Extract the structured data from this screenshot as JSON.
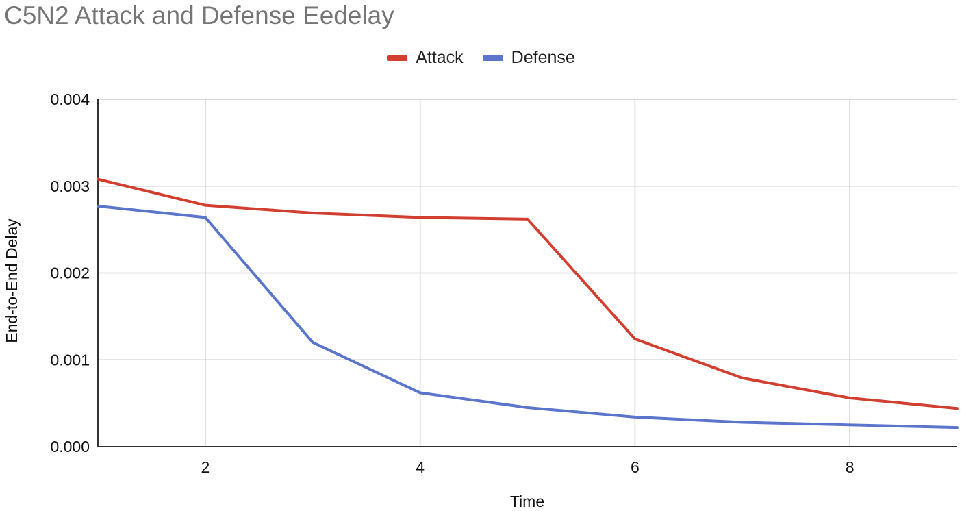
{
  "chart_data": {
    "type": "line",
    "title": "C5N2 Attack and Defense Eedelay",
    "xlabel": "Time",
    "ylabel": "End-to-End Delay",
    "xlim": [
      1,
      9
    ],
    "ylim": [
      0,
      0.004
    ],
    "x_ticks": [
      2,
      4,
      6,
      8
    ],
    "y_ticks": [
      "0.000",
      "0.001",
      "0.002",
      "0.003",
      "0.004"
    ],
    "grid": true,
    "legend_position": "top-center",
    "x": [
      1,
      2,
      3,
      4,
      5,
      6,
      7,
      8,
      9
    ],
    "series": [
      {
        "name": "Attack",
        "color": "#d23f31",
        "values": [
          0.00308,
          0.00278,
          0.00269,
          0.00264,
          0.00262,
          0.00124,
          0.00079,
          0.00056,
          0.00044
        ]
      },
      {
        "name": "Defense",
        "color": "#5b74cc",
        "values": [
          0.00277,
          0.00264,
          0.0012,
          0.00062,
          0.00045,
          0.00034,
          0.00028,
          0.00025,
          0.00022
        ]
      }
    ]
  }
}
